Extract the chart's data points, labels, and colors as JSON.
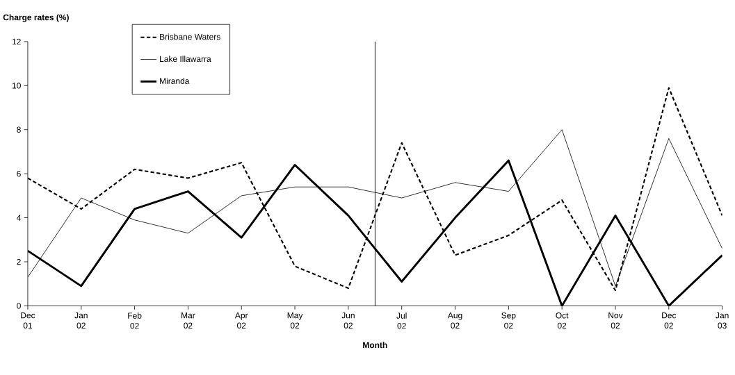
{
  "chart_data": {
    "type": "line",
    "ylabel": "Charge rates (%)",
    "xlabel": "Month",
    "categories": [
      "Dec 01",
      "Jan 02",
      "Feb 02",
      "Mar 02",
      "Apr 02",
      "May 02",
      "Jun 02",
      "Jul 02",
      "Aug 02",
      "Sep 02",
      "Oct 02",
      "Nov 02",
      "Dec 02",
      "Jan 03"
    ],
    "series": [
      {
        "name": "Brisbane Waters",
        "color": "#000000",
        "line_style": "dashed",
        "values": [
          5.8,
          4.4,
          6.2,
          5.8,
          6.5,
          1.8,
          0.8,
          7.4,
          2.3,
          3.2,
          4.8,
          0.7,
          9.9,
          4.1
        ]
      },
      {
        "name": "Lake Illawarra",
        "color": "#000000",
        "line_style": "solid",
        "values": [
          1.3,
          4.9,
          3.9,
          3.3,
          5.0,
          5.4,
          5.4,
          4.9,
          5.6,
          5.2,
          8.0,
          0.9,
          7.6,
          2.6
        ]
      },
      {
        "name": "Miranda",
        "color": "#000000",
        "line_style": "solid",
        "values": [
          2.5,
          0.9,
          4.4,
          5.2,
          3.1,
          6.4,
          4.1,
          1.1,
          4.0,
          6.6,
          0.0,
          4.1,
          0.0,
          2.3
        ]
      }
    ],
    "ylim": [
      0,
      12
    ],
    "yticks": [
      0,
      2,
      4,
      6,
      8,
      10,
      12
    ],
    "grid": false,
    "legend": "top left",
    "marker": "none"
  }
}
